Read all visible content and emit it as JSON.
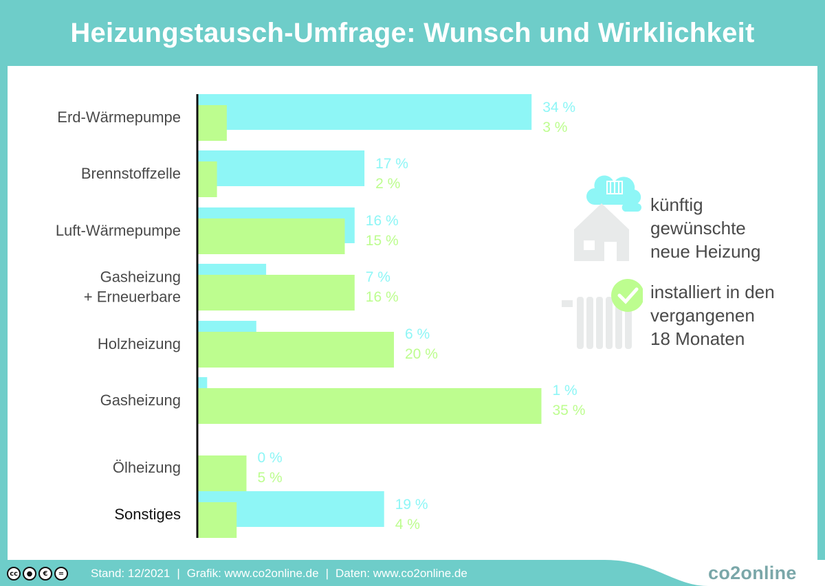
{
  "title": "Heizungstausch-Umfrage: Wunsch und Wirklichkeit",
  "legend": {
    "future_line1": "künftig",
    "future_line2": "gewünschte",
    "future_line3": "neue Heizung",
    "installed_line1": "installiert in den",
    "installed_line2": "vergangenen",
    "installed_line3": "18 Monaten"
  },
  "footer": {
    "stand": "Stand: 12/2021",
    "sep1": "|",
    "grafik": "Grafik: www.co2online.de",
    "sep2": "|",
    "daten": "Daten: www.co2online.de",
    "brand": "co2online"
  },
  "colors": {
    "teal": "#6ecdc9",
    "cyan": "#8ef6f6",
    "green": "#bdfd8f",
    "label": "#4a4a4a"
  },
  "chart_data": {
    "type": "bar",
    "orientation": "horizontal",
    "categories": [
      "Erd-Wärmepumpe",
      "Brennstoffzelle",
      "Luft-Wärmepumpe",
      "Gasheizung\n+ Erneuerbare",
      "Holzheizung",
      "Gasheizung",
      "Ölheizung",
      "Sonstiges"
    ],
    "series": [
      {
        "name": "künftig gewünschte neue Heizung",
        "color": "#8ef6f6",
        "values": [
          34,
          17,
          16,
          7,
          6,
          1,
          0,
          19
        ],
        "labels": [
          "34 %",
          "17 %",
          "16 %",
          "7 %",
          "6 %",
          "1 %",
          "0 %",
          "19 %"
        ]
      },
      {
        "name": "installiert in den vergangenen 18 Monaten",
        "color": "#bdfd8f",
        "values": [
          3,
          2,
          15,
          16,
          20,
          35,
          5,
          4
        ],
        "labels": [
          "3 %",
          "2 %",
          "15 %",
          "16 %",
          "20 %",
          "35 %",
          "5 %",
          "4 %"
        ]
      }
    ],
    "unit": "%",
    "xlim": [
      0,
      35
    ],
    "grid": false,
    "legend_position": "right"
  }
}
